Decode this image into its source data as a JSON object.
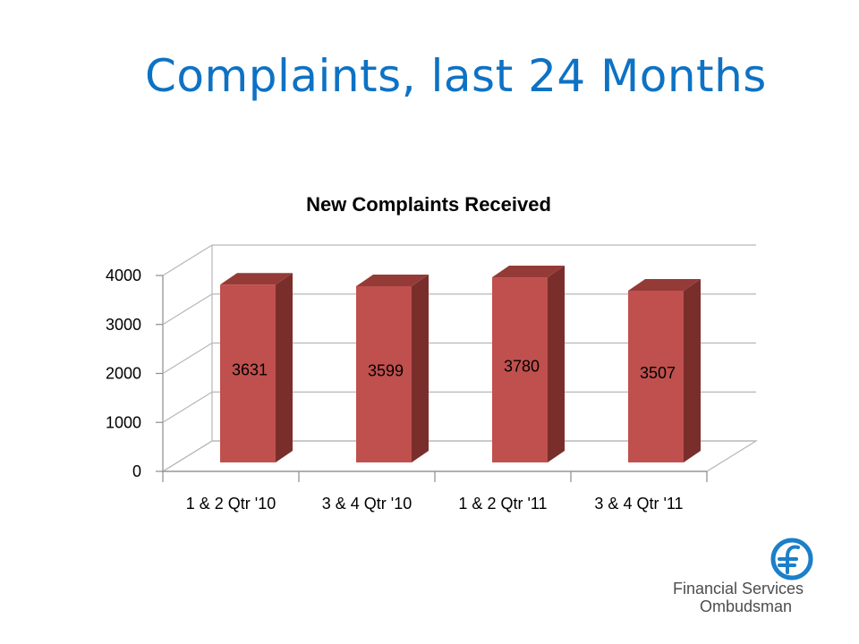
{
  "slide": {
    "title": "Complaints, last 24 Months"
  },
  "logo": {
    "line1": "Financial Services",
    "line2": "Ombudsman",
    "color": "#1b7fc9"
  },
  "chart_data": {
    "type": "bar",
    "title": "New Complaints Received",
    "categories": [
      "1 & 2 Qtr '10",
      "3 & 4 Qtr '10",
      "1 & 2 Qtr '11",
      "3 & 4 Qtr '11"
    ],
    "values": [
      3631,
      3599,
      3780,
      3507
    ],
    "data_labels": [
      "3631",
      "3599",
      "3780",
      "3507"
    ],
    "y_ticks": [
      0,
      1000,
      2000,
      3000,
      4000
    ],
    "ylim": [
      0,
      4000
    ],
    "grid": true,
    "legend": "none",
    "style": "3d-column",
    "colors": {
      "front": "#c0504d",
      "side": "#7a2e2c",
      "top": "#943b38"
    }
  }
}
